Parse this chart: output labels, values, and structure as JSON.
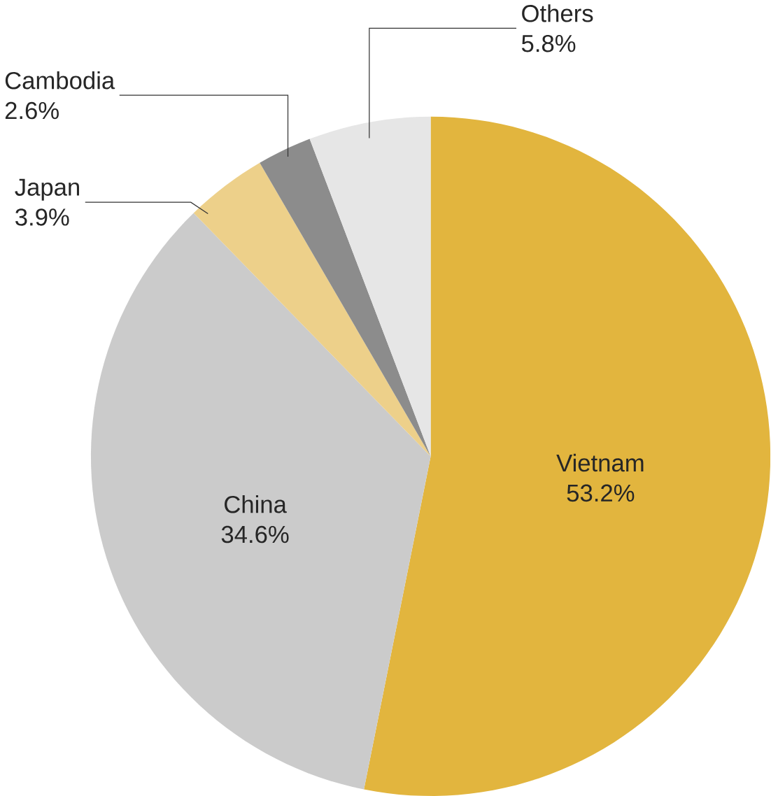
{
  "chart_data": {
    "type": "pie",
    "categories": [
      "Vietnam",
      "China",
      "Japan",
      "Cambodia",
      "Others"
    ],
    "values": [
      53.2,
      34.6,
      3.9,
      2.6,
      5.8
    ],
    "value_labels": [
      "53.2%",
      "34.6%",
      "3.9%",
      "2.6%",
      "5.8%"
    ],
    "colors": [
      "#e2b53e",
      "#cbcbcb",
      "#edd08a",
      "#8c8c8c",
      "#e6e6e6"
    ]
  }
}
